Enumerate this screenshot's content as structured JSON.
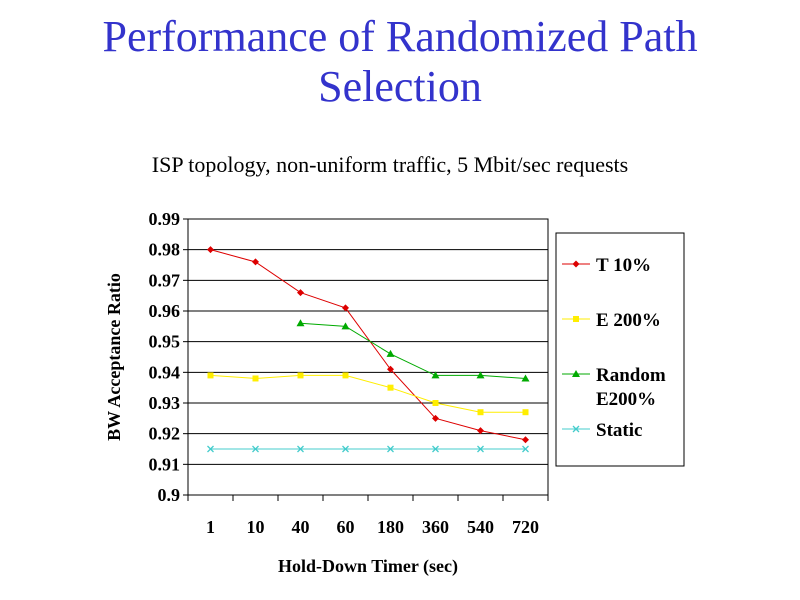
{
  "slide": {
    "title_line1": "Performance of Randomized Path",
    "title_line2": "Selection",
    "subtitle": "ISP topology, non-uniform traffic, 5 Mbit/sec requests"
  },
  "chart_data": {
    "type": "line",
    "title": "",
    "xlabel": "Hold-Down Timer (sec)",
    "ylabel": "BW Acceptance Ratio",
    "categories": [
      "1",
      "10",
      "40",
      "60",
      "180",
      "360",
      "540",
      "720"
    ],
    "ylim": [
      0.9,
      0.99
    ],
    "yticks": [
      "0.99",
      "0.98",
      "0.97",
      "0.96",
      "0.95",
      "0.94",
      "0.93",
      "0.92",
      "0.91",
      "0.9"
    ],
    "grid": true,
    "legend_position": "right",
    "series": [
      {
        "name": "T 10%",
        "label_lines": [
          "T 10%"
        ],
        "color": "#dd0000",
        "marker": "diamond",
        "values": [
          0.98,
          0.976,
          0.966,
          0.961,
          0.941,
          0.925,
          0.921,
          0.918
        ]
      },
      {
        "name": "E 200%",
        "label_lines": [
          "E 200%"
        ],
        "color": "#ffee00",
        "marker": "square",
        "values": [
          0.939,
          0.938,
          0.939,
          0.939,
          0.935,
          0.93,
          0.927,
          0.927
        ]
      },
      {
        "name": "Random E200%",
        "label_lines": [
          "Random",
          "E200%"
        ],
        "color": "#00aa00",
        "marker": "triangle",
        "values": [
          null,
          null,
          0.956,
          0.955,
          0.946,
          0.939,
          0.939,
          0.938
        ]
      },
      {
        "name": "Static",
        "label_lines": [
          "Static"
        ],
        "color": "#44cccc",
        "marker": "x",
        "values": [
          0.915,
          0.915,
          0.915,
          0.915,
          0.915,
          0.915,
          0.915,
          0.915
        ]
      }
    ]
  }
}
